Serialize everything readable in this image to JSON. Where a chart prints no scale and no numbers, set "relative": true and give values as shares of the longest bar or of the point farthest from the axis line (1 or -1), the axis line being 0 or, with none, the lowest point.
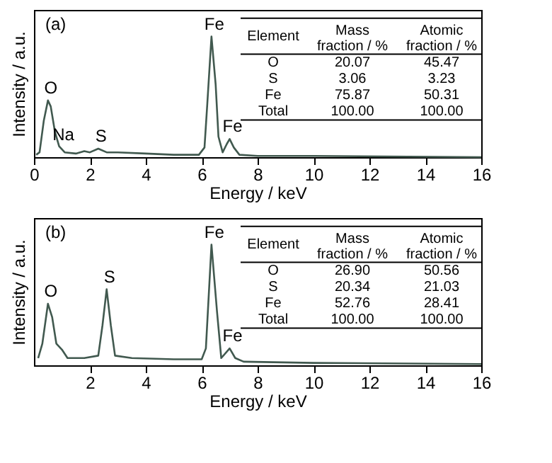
{
  "chart_data": [
    {
      "type": "line",
      "xlabel": "Energy / keV",
      "ylabel": "Intensity / a.u.",
      "relative": true,
      "tick_labels": "x",
      "x": [
        0.08,
        0.2,
        0.35,
        0.5,
        0.6,
        0.75,
        0.9,
        1.1,
        1.5,
        1.8,
        2.0,
        2.3,
        2.6,
        3.0,
        4.0,
        5.0,
        5.9,
        6.1,
        6.2,
        6.35,
        6.5,
        6.6,
        6.75,
        6.9,
        7.0,
        7.15,
        7.35,
        8,
        10,
        16
      ],
      "series": [
        {
          "color": "#41594f",
          "values": [
            0.02,
            0.04,
            0.3,
            0.47,
            0.42,
            0.21,
            0.09,
            0.04,
            0.03,
            0.05,
            0.04,
            0.07,
            0.04,
            0.04,
            0.03,
            0.02,
            0.02,
            0.08,
            0.44,
            1,
            0.6,
            0.17,
            0.04,
            0.11,
            0.15,
            0.08,
            0.02,
            0.01,
            0.01,
            0.0
          ]
        }
      ],
      "xlim": [
        0,
        16
      ],
      "xticks": [
        0,
        2,
        4,
        6,
        8,
        10,
        12,
        14,
        16
      ],
      "annotations": [
        "(a)",
        "Element",
        "Mass fraction / %",
        "Atomic fraction / %",
        "O",
        "20.07",
        "45.47",
        "S",
        "3.06",
        "3.23",
        "Fe",
        "75.87",
        "50.31",
        "Total",
        "100.00",
        "100.00",
        {
          "text": "O",
          "x": 0.5,
          "y": 0.47
        },
        {
          "text": "Na",
          "x": 0.95,
          "y": 0.08
        },
        {
          "text": "S",
          "x": 2.3,
          "y": 0.07
        },
        {
          "text": "Fe",
          "x": 6.35,
          "y": 1
        },
        {
          "text": "Fe",
          "x": 7.0,
          "y": 0.15
        }
      ]
    },
    {
      "type": "line",
      "xlabel": "Energy / keV",
      "ylabel": "Intensity / a.u.",
      "relative": true,
      "tick_labels": "x",
      "x": [
        0.15,
        0.3,
        0.5,
        0.65,
        0.8,
        1.0,
        1.2,
        1.8,
        2.3,
        2.45,
        2.6,
        2.75,
        2.9,
        3.5,
        5.0,
        6.0,
        6.15,
        6.35,
        6.55,
        6.7,
        7.0,
        7.2,
        7.5,
        10,
        16
      ],
      "series": [
        {
          "color": "#41594f",
          "values": [
            0.06,
            0.18,
            0.51,
            0.4,
            0.18,
            0.13,
            0.06,
            0.06,
            0.08,
            0.33,
            0.63,
            0.33,
            0.08,
            0.06,
            0.05,
            0.05,
            0.14,
            1,
            0.44,
            0.06,
            0.14,
            0.06,
            0.03,
            0.02,
            0.01
          ]
        }
      ],
      "xlim": [
        0,
        16
      ],
      "xticks": [
        2,
        4,
        6,
        8,
        10,
        12,
        14,
        16
      ],
      "annotations": [
        "(b)",
        "Element",
        "Mass fraction / %",
        "Atomic fraction / %",
        "O",
        "26.90",
        "50.56",
        "S",
        "20.34",
        "21.03",
        "Fe",
        "52.76",
        "28.41",
        "Total",
        "100.00",
        "100.00",
        {
          "text": "O",
          "x": 0.5,
          "y": 0.51
        },
        {
          "text": "S",
          "x": 2.6,
          "y": 0.63
        },
        {
          "text": "Fe",
          "x": 6.35,
          "y": 1
        },
        {
          "text": "Fe",
          "x": 7.0,
          "y": 0.14
        }
      ]
    }
  ]
}
